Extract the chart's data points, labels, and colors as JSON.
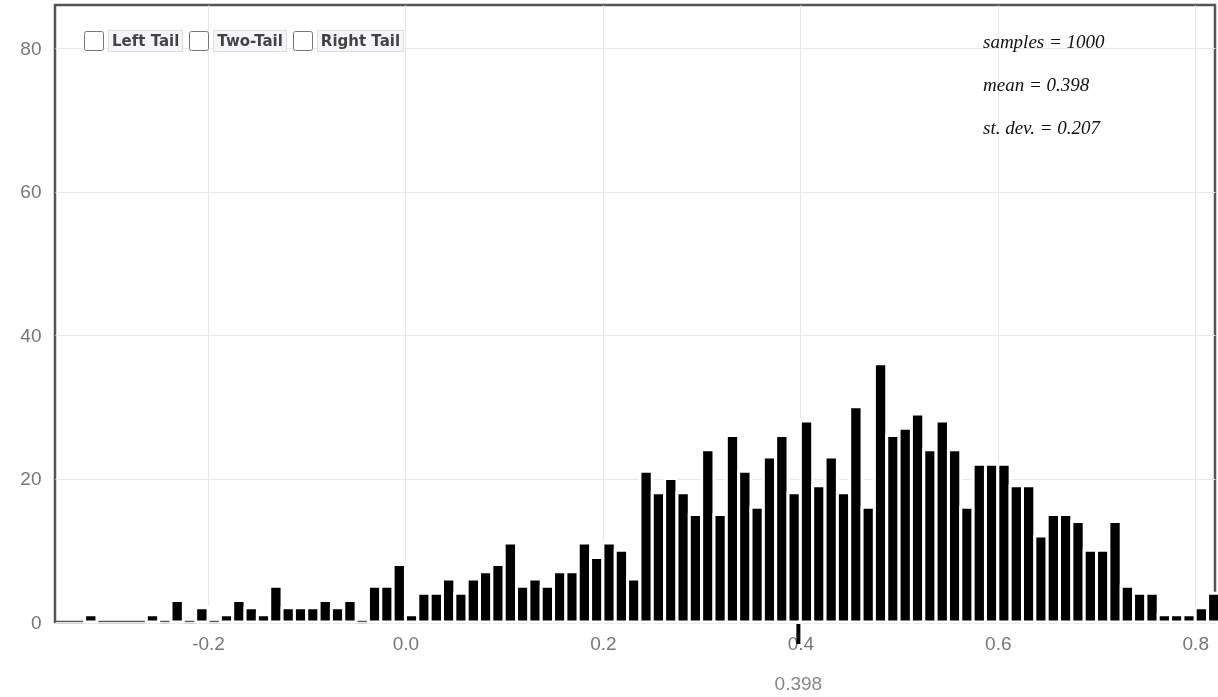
{
  "chart_data": {
    "type": "histogram",
    "bins": [
      -0.325,
      -0.3125,
      -0.3,
      -0.2875,
      -0.275,
      -0.2625,
      -0.25,
      -0.2375,
      -0.225,
      -0.2125,
      -0.2,
      -0.1875,
      -0.175,
      -0.1625,
      -0.15,
      -0.1375,
      -0.125,
      -0.1125,
      -0.1,
      -0.0875,
      -0.075,
      -0.0625,
      -0.05,
      -0.0375,
      -0.025,
      -0.0125,
      0,
      0.0125,
      0.025,
      0.0375,
      0.05,
      0.0625,
      0.075,
      0.0875,
      0.1,
      0.1125,
      0.125,
      0.1375,
      0.15,
      0.1625,
      0.175,
      0.1875,
      0.2,
      0.2125,
      0.225,
      0.2375,
      0.25,
      0.2625,
      0.275,
      0.2875,
      0.3,
      0.3125,
      0.325,
      0.3375,
      0.35,
      0.3625,
      0.375,
      0.3875,
      0.4,
      0.4125,
      0.425,
      0.4375,
      0.45,
      0.4625,
      0.475,
      0.4875,
      0.5,
      0.5125,
      0.525,
      0.5375,
      0.55,
      0.5625,
      0.575,
      0.5875,
      0.6,
      0.6125,
      0.625,
      0.6375,
      0.65,
      0.6625,
      0.675,
      0.6875,
      0.7,
      0.7125,
      0.725,
      0.7375,
      0.75,
      0.7625,
      0.775,
      0.7875,
      0.8,
      0.8125,
      0.825
    ],
    "values": [
      1,
      0,
      0,
      0,
      0,
      1,
      0,
      3,
      0,
      2,
      0,
      1,
      3,
      2,
      1,
      5,
      2,
      2,
      2,
      3,
      2,
      3,
      0,
      5,
      5,
      8,
      1,
      4,
      4,
      6,
      4,
      6,
      7,
      8,
      11,
      5,
      6,
      5,
      7,
      7,
      11,
      9,
      11,
      10,
      6,
      21,
      18,
      20,
      18,
      15,
      24,
      15,
      26,
      21,
      16,
      23,
      26,
      18,
      28,
      19,
      23,
      18,
      30,
      16,
      36,
      26,
      27,
      29,
      24,
      28,
      24,
      16,
      22,
      22,
      22,
      19,
      19,
      12,
      15,
      15,
      14,
      10,
      10,
      14,
      5,
      4,
      4,
      1,
      1,
      1,
      2,
      4
    ],
    "color": "#000000",
    "xlim": [
      -0.355,
      0.82
    ],
    "xticks": [
      {
        "value": -0.2,
        "label": "-0.2"
      },
      {
        "value": 0,
        "label": "0.0"
      },
      0.2,
      0.4,
      0.6,
      0.8
    ],
    "ylim": [
      0,
      86
    ],
    "yticks": [
      0,
      20,
      40,
      60,
      80
    ],
    "grid": true,
    "annotations": [
      "Left Tail",
      "Two-Tail",
      "Right Tail",
      "samples = 1000",
      "mean = 0.398",
      "st. dev. = 0.207",
      {
        "text": "0.398",
        "x": 0.398,
        "y": 0
      }
    ]
  }
}
